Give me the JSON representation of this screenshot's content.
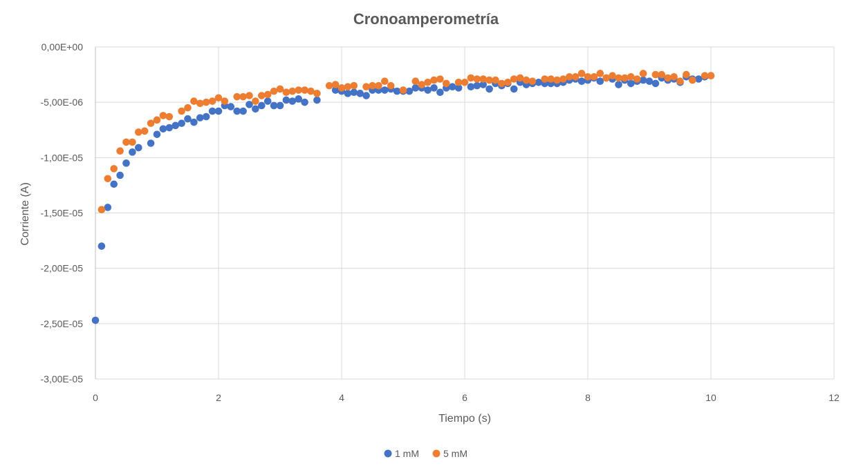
{
  "chart_data": {
    "type": "scatter",
    "title": "Cronoamperometría",
    "xlabel": "Tiempo (s)",
    "ylabel": "Corriente (A)",
    "xlim": [
      0,
      12
    ],
    "ylim": [
      -3e-05,
      0
    ],
    "x_ticks": [
      0,
      2,
      4,
      6,
      8,
      10,
      12
    ],
    "x_tick_labels": [
      "0",
      "2",
      "4",
      "6",
      "8",
      "10",
      "12"
    ],
    "y_ticks": [
      0,
      -5e-06,
      -1e-05,
      -1.5e-05,
      -2e-05,
      -2.5e-05,
      -3e-05
    ],
    "y_tick_labels": [
      "0,00E+00",
      "-5,00E-06",
      "-1,00E-05",
      "-1,50E-05",
      "-2,00E-05",
      "-2,50E-05",
      "-3,00E-05"
    ],
    "grid": true,
    "legend_position": "bottom",
    "series": [
      {
        "name": "1 mM",
        "color": "#4472C4",
        "points": [
          [
            0.0,
            -2.47e-05
          ],
          [
            0.1,
            -1.8e-05
          ],
          [
            0.2,
            -1.45e-05
          ],
          [
            0.3,
            -1.24e-05
          ],
          [
            0.4,
            -1.16e-05
          ],
          [
            0.5,
            -1.05e-05
          ],
          [
            0.6,
            -9.5e-06
          ],
          [
            0.7,
            -9.1e-06
          ],
          [
            0.9,
            -8.7e-06
          ],
          [
            1.0,
            -7.9e-06
          ],
          [
            1.1,
            -7.4e-06
          ],
          [
            1.2,
            -7.3e-06
          ],
          [
            1.3,
            -7.1e-06
          ],
          [
            1.4,
            -6.9e-06
          ],
          [
            1.5,
            -6.5e-06
          ],
          [
            1.6,
            -6.8e-06
          ],
          [
            1.7,
            -6.4e-06
          ],
          [
            1.8,
            -6.3e-06
          ],
          [
            1.9,
            -5.8e-06
          ],
          [
            2.0,
            -5.8e-06
          ],
          [
            2.1,
            -5.3e-06
          ],
          [
            2.2,
            -5.4e-06
          ],
          [
            2.3,
            -5.8e-06
          ],
          [
            2.4,
            -5.8e-06
          ],
          [
            2.5,
            -5.2e-06
          ],
          [
            2.6,
            -5.6e-06
          ],
          [
            2.7,
            -5.3e-06
          ],
          [
            2.8,
            -4.9e-06
          ],
          [
            2.9,
            -5.3e-06
          ],
          [
            3.0,
            -5.3e-06
          ],
          [
            3.1,
            -4.8e-06
          ],
          [
            3.2,
            -4.9e-06
          ],
          [
            3.3,
            -4.7e-06
          ],
          [
            3.4,
            -5e-06
          ],
          [
            3.6,
            -4.8e-06
          ],
          [
            3.9,
            -3.9e-06
          ],
          [
            4.0,
            -4e-06
          ],
          [
            4.1,
            -4.2e-06
          ],
          [
            4.2,
            -4.1e-06
          ],
          [
            4.3,
            -4.2e-06
          ],
          [
            4.4,
            -4.4e-06
          ],
          [
            4.5,
            -3.9e-06
          ],
          [
            4.6,
            -3.9e-06
          ],
          [
            4.7,
            -3.9e-06
          ],
          [
            4.8,
            -3.8e-06
          ],
          [
            4.9,
            -4e-06
          ],
          [
            5.0,
            -4e-06
          ],
          [
            5.1,
            -4e-06
          ],
          [
            5.2,
            -3.7e-06
          ],
          [
            5.3,
            -3.7e-06
          ],
          [
            5.4,
            -3.9e-06
          ],
          [
            5.5,
            -3.7e-06
          ],
          [
            5.6,
            -4.1e-06
          ],
          [
            5.7,
            -3.7e-06
          ],
          [
            5.8,
            -3.6e-06
          ],
          [
            5.9,
            -3.7e-06
          ],
          [
            6.1,
            -3.6e-06
          ],
          [
            6.2,
            -3.5e-06
          ],
          [
            6.3,
            -3.4e-06
          ],
          [
            6.4,
            -3.8e-06
          ],
          [
            6.5,
            -3.3e-06
          ],
          [
            6.6,
            -3.5e-06
          ],
          [
            6.7,
            -3.3e-06
          ],
          [
            6.8,
            -3.8e-06
          ],
          [
            6.9,
            -3.2e-06
          ],
          [
            7.0,
            -3.4e-06
          ],
          [
            7.1,
            -3.3e-06
          ],
          [
            7.2,
            -3.2e-06
          ],
          [
            7.3,
            -3.3e-06
          ],
          [
            7.4,
            -3.3e-06
          ],
          [
            7.5,
            -3.3e-06
          ],
          [
            7.6,
            -3.2e-06
          ],
          [
            7.7,
            -3e-06
          ],
          [
            7.8,
            -2.9e-06
          ],
          [
            7.9,
            -3.1e-06
          ],
          [
            8.0,
            -3e-06
          ],
          [
            8.1,
            -2.8e-06
          ],
          [
            8.2,
            -3.1e-06
          ],
          [
            8.3,
            -2.8e-06
          ],
          [
            8.4,
            -2.9e-06
          ],
          [
            8.5,
            -3.4e-06
          ],
          [
            8.6,
            -3e-06
          ],
          [
            8.7,
            -3.3e-06
          ],
          [
            8.8,
            -3.1e-06
          ],
          [
            8.9,
            -3e-06
          ],
          [
            9.0,
            -3.1e-06
          ],
          [
            9.1,
            -3.3e-06
          ],
          [
            9.2,
            -2.8e-06
          ],
          [
            9.3,
            -3e-06
          ],
          [
            9.4,
            -2.9e-06
          ],
          [
            9.5,
            -3.2e-06
          ],
          [
            9.6,
            -2.7e-06
          ],
          [
            9.7,
            -2.9e-06
          ],
          [
            9.8,
            -2.9e-06
          ],
          [
            9.9,
            -2.7e-06
          ],
          [
            10.0,
            -2.6e-06
          ]
        ]
      },
      {
        "name": "5 mM",
        "color": "#ED7D31",
        "points": [
          [
            0.1,
            -1.47e-05
          ],
          [
            0.2,
            -1.19e-05
          ],
          [
            0.3,
            -1.1e-05
          ],
          [
            0.4,
            -9.4e-06
          ],
          [
            0.5,
            -8.6e-06
          ],
          [
            0.6,
            -8.6e-06
          ],
          [
            0.7,
            -7.7e-06
          ],
          [
            0.8,
            -7.6e-06
          ],
          [
            0.9,
            -6.9e-06
          ],
          [
            1.0,
            -6.6e-06
          ],
          [
            1.1,
            -6.2e-06
          ],
          [
            1.2,
            -6.3e-06
          ],
          [
            1.4,
            -5.8e-06
          ],
          [
            1.5,
            -5.5e-06
          ],
          [
            1.6,
            -4.9e-06
          ],
          [
            1.7,
            -5.1e-06
          ],
          [
            1.8,
            -5e-06
          ],
          [
            1.9,
            -4.9e-06
          ],
          [
            2.0,
            -4.6e-06
          ],
          [
            2.1,
            -4.9e-06
          ],
          [
            2.3,
            -4.5e-06
          ],
          [
            2.4,
            -4.5e-06
          ],
          [
            2.5,
            -4.4e-06
          ],
          [
            2.6,
            -4.9e-06
          ],
          [
            2.7,
            -4.4e-06
          ],
          [
            2.8,
            -4.3e-06
          ],
          [
            2.9,
            -4e-06
          ],
          [
            3.0,
            -3.8e-06
          ],
          [
            3.1,
            -4.1e-06
          ],
          [
            3.2,
            -4e-06
          ],
          [
            3.3,
            -3.9e-06
          ],
          [
            3.4,
            -3.9e-06
          ],
          [
            3.5,
            -4e-06
          ],
          [
            3.6,
            -4.2e-06
          ],
          [
            3.8,
            -3.5e-06
          ],
          [
            3.9,
            -3.4e-06
          ],
          [
            4.0,
            -3.7e-06
          ],
          [
            4.1,
            -3.6e-06
          ],
          [
            4.2,
            -3.5e-06
          ],
          [
            4.4,
            -3.6e-06
          ],
          [
            4.5,
            -3.5e-06
          ],
          [
            4.6,
            -3.5e-06
          ],
          [
            4.7,
            -3.1e-06
          ],
          [
            4.8,
            -3.5e-06
          ],
          [
            5.0,
            -3.9e-06
          ],
          [
            5.2,
            -3.1e-06
          ],
          [
            5.3,
            -3.4e-06
          ],
          [
            5.4,
            -3.2e-06
          ],
          [
            5.5,
            -3e-06
          ],
          [
            5.6,
            -2.9e-06
          ],
          [
            5.7,
            -3.3e-06
          ],
          [
            5.9,
            -3.2e-06
          ],
          [
            6.0,
            -3.2e-06
          ],
          [
            6.1,
            -2.8e-06
          ],
          [
            6.2,
            -2.9e-06
          ],
          [
            6.3,
            -2.9e-06
          ],
          [
            6.4,
            -3e-06
          ],
          [
            6.5,
            -3e-06
          ],
          [
            6.6,
            -3.3e-06
          ],
          [
            6.7,
            -3.2e-06
          ],
          [
            6.8,
            -2.9e-06
          ],
          [
            6.9,
            -2.8e-06
          ],
          [
            7.0,
            -3e-06
          ],
          [
            7.1,
            -3.1e-06
          ],
          [
            7.3,
            -2.9e-06
          ],
          [
            7.4,
            -2.9e-06
          ],
          [
            7.5,
            -3e-06
          ],
          [
            7.6,
            -2.9e-06
          ],
          [
            7.7,
            -2.7e-06
          ],
          [
            7.8,
            -2.7e-06
          ],
          [
            7.9,
            -2.4e-06
          ],
          [
            8.0,
            -2.7e-06
          ],
          [
            8.1,
            -2.7e-06
          ],
          [
            8.2,
            -2.4e-06
          ],
          [
            8.3,
            -2.8e-06
          ],
          [
            8.4,
            -2.6e-06
          ],
          [
            8.5,
            -2.8e-06
          ],
          [
            8.6,
            -2.8e-06
          ],
          [
            8.7,
            -2.7e-06
          ],
          [
            8.8,
            -2.9e-06
          ],
          [
            8.9,
            -2.4e-06
          ],
          [
            9.1,
            -2.5e-06
          ],
          [
            9.2,
            -2.5e-06
          ],
          [
            9.3,
            -2.8e-06
          ],
          [
            9.4,
            -2.7e-06
          ],
          [
            9.5,
            -3.1e-06
          ],
          [
            9.6,
            -2.5e-06
          ],
          [
            9.7,
            -3e-06
          ],
          [
            9.9,
            -2.6e-06
          ],
          [
            10.0,
            -2.6e-06
          ]
        ]
      }
    ]
  }
}
